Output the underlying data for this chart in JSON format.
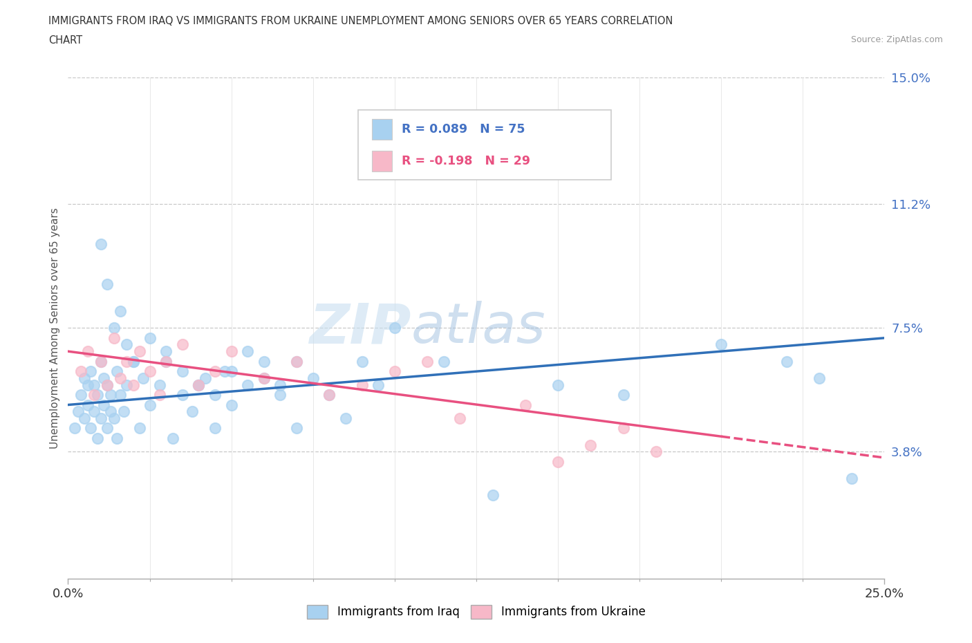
{
  "title_line1": "IMMIGRANTS FROM IRAQ VS IMMIGRANTS FROM UKRAINE UNEMPLOYMENT AMONG SENIORS OVER 65 YEARS CORRELATION",
  "title_line2": "CHART",
  "source": "Source: ZipAtlas.com",
  "ylabel": "Unemployment Among Seniors over 65 years",
  "xlim": [
    0,
    0.25
  ],
  "ylim": [
    0,
    0.15
  ],
  "yticks": [
    0.0,
    0.038,
    0.075,
    0.112,
    0.15
  ],
  "ytick_labels": [
    "",
    "3.8%",
    "7.5%",
    "11.2%",
    "15.0%"
  ],
  "xtick_labels": [
    "0.0%",
    "25.0%"
  ],
  "iraq_color": "#a8d1f0",
  "ukraine_color": "#f7b8c8",
  "iraq_line_color": "#3070b8",
  "ukraine_line_color": "#e85080",
  "iraq_R": 0.089,
  "iraq_N": 75,
  "ukraine_R": -0.198,
  "ukraine_N": 29,
  "watermark_zip": "ZIP",
  "watermark_atlas": "atlas",
  "iraq_x": [
    0.002,
    0.003,
    0.004,
    0.005,
    0.005,
    0.006,
    0.006,
    0.007,
    0.007,
    0.008,
    0.008,
    0.009,
    0.009,
    0.01,
    0.01,
    0.011,
    0.011,
    0.012,
    0.012,
    0.013,
    0.013,
    0.014,
    0.015,
    0.015,
    0.016,
    0.017,
    0.018,
    0.02,
    0.022,
    0.023,
    0.025,
    0.028,
    0.03,
    0.032,
    0.035,
    0.038,
    0.04,
    0.042,
    0.045,
    0.048,
    0.05,
    0.055,
    0.06,
    0.065,
    0.07,
    0.075,
    0.08,
    0.085,
    0.09,
    0.095,
    0.01,
    0.012,
    0.014,
    0.016,
    0.018,
    0.02,
    0.025,
    0.03,
    0.035,
    0.04,
    0.045,
    0.05,
    0.055,
    0.06,
    0.065,
    0.07,
    0.1,
    0.115,
    0.13,
    0.15,
    0.17,
    0.2,
    0.22,
    0.23,
    0.24
  ],
  "iraq_y": [
    0.045,
    0.05,
    0.055,
    0.048,
    0.06,
    0.052,
    0.058,
    0.045,
    0.062,
    0.05,
    0.058,
    0.042,
    0.055,
    0.048,
    0.065,
    0.052,
    0.06,
    0.045,
    0.058,
    0.05,
    0.055,
    0.048,
    0.062,
    0.042,
    0.055,
    0.05,
    0.058,
    0.065,
    0.045,
    0.06,
    0.052,
    0.058,
    0.065,
    0.042,
    0.055,
    0.05,
    0.058,
    0.06,
    0.045,
    0.062,
    0.052,
    0.058,
    0.065,
    0.055,
    0.045,
    0.06,
    0.055,
    0.048,
    0.065,
    0.058,
    0.1,
    0.088,
    0.075,
    0.08,
    0.07,
    0.065,
    0.072,
    0.068,
    0.062,
    0.058,
    0.055,
    0.062,
    0.068,
    0.06,
    0.058,
    0.065,
    0.075,
    0.065,
    0.025,
    0.058,
    0.055,
    0.07,
    0.065,
    0.06,
    0.03
  ],
  "ukraine_x": [
    0.004,
    0.006,
    0.008,
    0.01,
    0.012,
    0.014,
    0.016,
    0.018,
    0.02,
    0.022,
    0.025,
    0.028,
    0.03,
    0.035,
    0.04,
    0.045,
    0.05,
    0.06,
    0.07,
    0.08,
    0.09,
    0.1,
    0.11,
    0.12,
    0.14,
    0.15,
    0.16,
    0.17,
    0.18
  ],
  "ukraine_y": [
    0.062,
    0.068,
    0.055,
    0.065,
    0.058,
    0.072,
    0.06,
    0.065,
    0.058,
    0.068,
    0.062,
    0.055,
    0.065,
    0.07,
    0.058,
    0.062,
    0.068,
    0.06,
    0.065,
    0.055,
    0.058,
    0.062,
    0.065,
    0.048,
    0.052,
    0.035,
    0.04,
    0.045,
    0.038
  ]
}
